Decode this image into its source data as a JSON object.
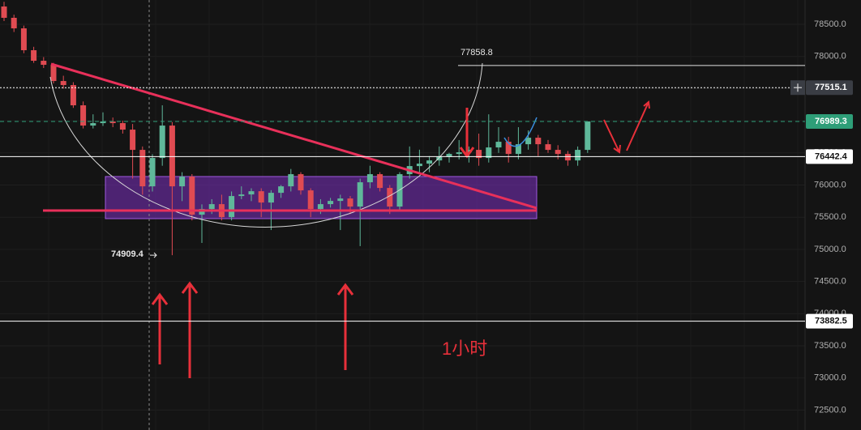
{
  "chart_data": {
    "type": "candlestick",
    "up_color": "#5fb89a",
    "down_color": "#e04b52",
    "ylim": [
      72190,
      78878
    ],
    "yticks": [
      {
        "value": 72500,
        "label": "72500.0"
      },
      {
        "value": 73000,
        "label": "73000.0"
      },
      {
        "value": 73500,
        "label": "73500.0"
      },
      {
        "value": 74000,
        "label": "74000.0"
      },
      {
        "value": 74500,
        "label": "74500.0"
      },
      {
        "value": 75000,
        "label": "75000.0"
      },
      {
        "value": 75500,
        "label": "75500.0"
      },
      {
        "value": 76000,
        "label": "76000.0"
      },
      {
        "value": 76500,
        "label": "76500.0"
      },
      {
        "value": 77000,
        "label": "77000.0"
      },
      {
        "value": 77500,
        "label": "77500.0"
      },
      {
        "value": 78000,
        "label": "78000.0"
      },
      {
        "value": 78500,
        "label": "78500.0"
      }
    ],
    "grid": true,
    "open": [
      78777,
      78601,
      78437,
      78097,
      77933,
      77870,
      77618,
      77555,
      77240,
      76925,
      76963,
      76988,
      76963,
      76862,
      76547,
      75980,
      76421,
      76925,
      75980,
      76131,
      75539,
      75627,
      75703,
      75501,
      75829,
      75854,
      75904,
      75728,
      75879,
      75980,
      76169,
      75917,
      75627,
      75703,
      75753,
      75791,
      75665,
      76043,
      76169,
      75955,
      75665,
      76169,
      76295,
      76333,
      76383,
      76446,
      76484,
      76509,
      76547,
      76421,
      76585,
      76673,
      76484,
      76635,
      76736,
      76635,
      76547,
      76484,
      76383,
      76547
    ],
    "high": [
      78850,
      78650,
      78480,
      78150,
      77990,
      77900,
      77700,
      77600,
      77300,
      77100,
      77130,
      77050,
      77000,
      76950,
      76600,
      76480,
      77240,
      76980,
      76200,
      76170,
      75700,
      75780,
      75850,
      75900,
      75980,
      75950,
      75950,
      75920,
      76000,
      76250,
      76200,
      75950,
      75780,
      75800,
      75850,
      75830,
      76100,
      76300,
      76200,
      76000,
      76200,
      76600,
      76550,
      76450,
      76600,
      76500,
      76700,
      76600,
      76800,
      77100,
      76900,
      76750,
      76900,
      76850,
      76780,
      76700,
      76620,
      76530,
      76600,
      76990
    ],
    "low": [
      78550,
      78380,
      78050,
      77900,
      77820,
      77580,
      77500,
      77200,
      76880,
      76880,
      76920,
      76900,
      76800,
      76100,
      75850,
      75900,
      76300,
      74909,
      75750,
      75450,
      75100,
      75550,
      75450,
      75450,
      75780,
      75750,
      75500,
      75300,
      75800,
      75900,
      75850,
      75500,
      75550,
      75650,
      75300,
      75550,
      75050,
      75950,
      75900,
      75550,
      75600,
      76100,
      76200,
      76200,
      76300,
      76350,
      76400,
      76350,
      76300,
      76350,
      76500,
      76350,
      76400,
      76550,
      76450,
      76500,
      76400,
      76300,
      76300,
      76500
    ],
    "close": [
      78601,
      78437,
      78097,
      77933,
      77870,
      77618,
      77555,
      77240,
      76925,
      76963,
      76988,
      76963,
      76862,
      76547,
      75980,
      76421,
      76925,
      75980,
      76131,
      75539,
      75627,
      75703,
      75501,
      75829,
      75854,
      75904,
      75728,
      75879,
      75980,
      76169,
      75917,
      75627,
      75703,
      75753,
      75791,
      75665,
      76043,
      76169,
      75955,
      75665,
      76169,
      76295,
      76333,
      76383,
      76446,
      76484,
      76509,
      76547,
      76421,
      76585,
      76673,
      76484,
      76635,
      76736,
      76635,
      76547,
      76484,
      76383,
      76547,
      76989
    ],
    "price_lines": [
      {
        "value": 77515.1,
        "style": "dotted",
        "color": "#ffffff",
        "tag_bg": "#3a3d44",
        "tag_fg": "#ffffff"
      },
      {
        "value": 76989.3,
        "style": "dashed",
        "color": "#2e9e78",
        "tag_bg": "#2e9e78",
        "tag_fg": "#ffffff"
      },
      {
        "value": 76442.4,
        "style": "solid",
        "color": "#ffffff",
        "tag_bg": "#ffffff",
        "tag_fg": "#111111"
      },
      {
        "value": 73882.5,
        "style": "solid",
        "color": "#ffffff",
        "tag_bg": "#ffffff",
        "tag_fg": "#111111"
      }
    ],
    "annotations": [
      {
        "value": 77858.8
      },
      {
        "value": 74909.4
      }
    ],
    "caption": "1小时"
  }
}
